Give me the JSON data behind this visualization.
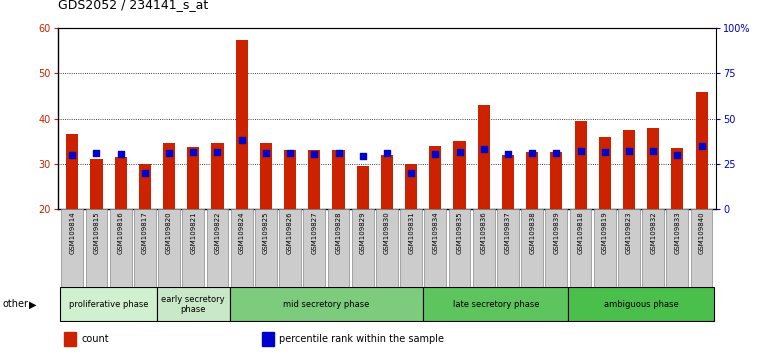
{
  "title": "GDS2052 / 234141_s_at",
  "samples": [
    "GSM109814",
    "GSM109815",
    "GSM109816",
    "GSM109817",
    "GSM109820",
    "GSM109821",
    "GSM109822",
    "GSM109824",
    "GSM109825",
    "GSM109826",
    "GSM109827",
    "GSM109828",
    "GSM109829",
    "GSM109830",
    "GSM109831",
    "GSM109834",
    "GSM109835",
    "GSM109836",
    "GSM109837",
    "GSM109838",
    "GSM109839",
    "GSM109818",
    "GSM109819",
    "GSM109823",
    "GSM109832",
    "GSM109833",
    "GSM109840"
  ],
  "count_values": [
    36.5,
    31.0,
    31.5,
    30.0,
    34.5,
    33.8,
    34.5,
    57.5,
    34.5,
    33.0,
    33.0,
    33.0,
    29.5,
    32.0,
    30.0,
    34.0,
    35.0,
    43.0,
    32.0,
    32.5,
    32.5,
    39.5,
    36.0,
    37.5,
    38.0,
    33.5,
    46.0
  ],
  "percentile_values": [
    30.0,
    31.0,
    30.5,
    20.0,
    31.0,
    31.5,
    31.5,
    38.0,
    31.0,
    31.0,
    30.5,
    31.0,
    29.5,
    31.0,
    20.0,
    30.5,
    31.5,
    33.0,
    30.5,
    31.0,
    31.0,
    32.0,
    31.5,
    32.0,
    32.0,
    30.0,
    35.0
  ],
  "groups": [
    {
      "label": "proliferative phase",
      "start": 0,
      "end": 4,
      "color": "#d0f0d0"
    },
    {
      "label": "early secretory\nphase",
      "start": 4,
      "end": 7,
      "color": "#c8e8c8"
    },
    {
      "label": "mid secretory phase",
      "start": 7,
      "end": 15,
      "color": "#7dcc7d"
    },
    {
      "label": "late secretory phase",
      "start": 15,
      "end": 21,
      "color": "#5ec45e"
    },
    {
      "label": "ambiguous phase",
      "start": 21,
      "end": 27,
      "color": "#4bbf4b"
    }
  ],
  "ylim_left": [
    20,
    60
  ],
  "ylim_right": [
    0,
    100
  ],
  "yticks_left": [
    20,
    30,
    40,
    50,
    60
  ],
  "yticks_right": [
    0,
    25,
    50,
    75,
    100
  ],
  "ytick_labels_right": [
    "0",
    "25",
    "50",
    "75",
    "100%"
  ],
  "bar_color": "#cc2200",
  "dot_color": "#0000cc",
  "bar_width": 0.5,
  "plot_bg_color": "#ffffff",
  "tick_color_left": "#cc2200",
  "tick_color_right": "#0000cc",
  "other_label": "other",
  "legend_items": [
    {
      "label": "count",
      "color": "#cc2200"
    },
    {
      "label": "percentile rank within the sample",
      "color": "#0000cc"
    }
  ]
}
